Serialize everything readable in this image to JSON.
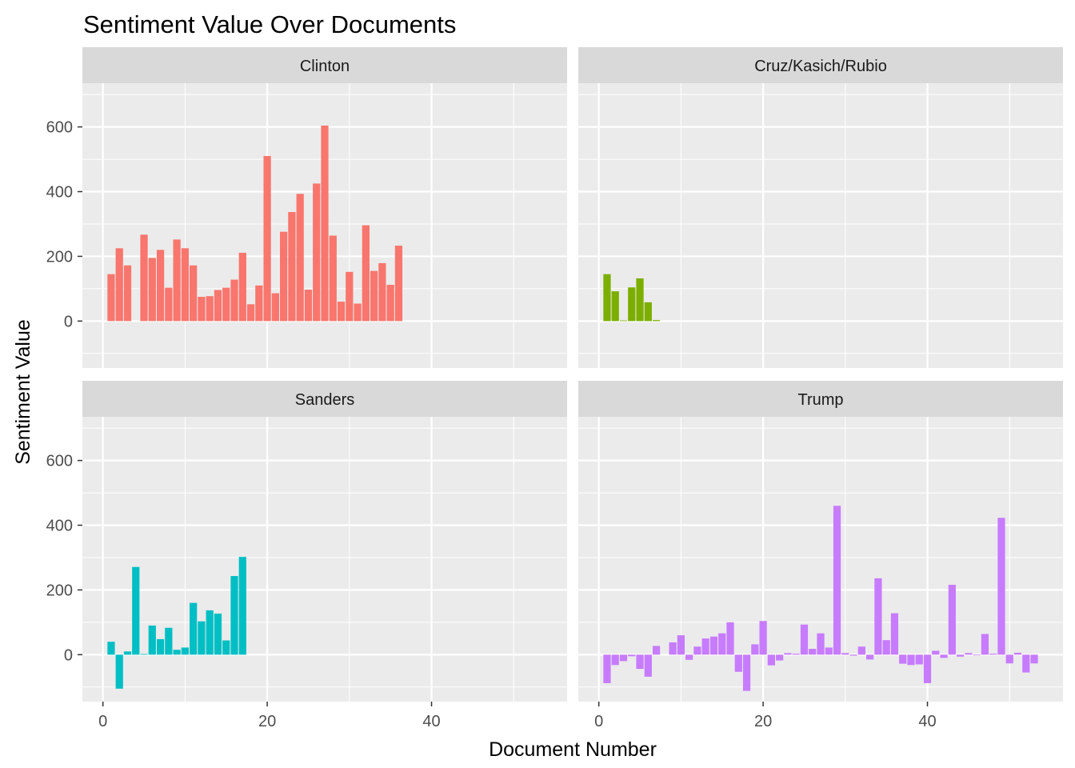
{
  "chart_data": {
    "type": "bar",
    "title": "Sentiment Value Over Documents",
    "xlabel": "Document Number",
    "ylabel": "Sentiment Value",
    "xlim": [
      -2.5,
      56.5
    ],
    "ylim": [
      -145,
      735
    ],
    "x_ticks": [
      0,
      20,
      40
    ],
    "y_ticks": [
      0,
      200,
      400,
      600
    ],
    "grid": true,
    "legend": "none",
    "facets": [
      {
        "name": "Clinton",
        "color": "#F8766D",
        "x": [
          1,
          2,
          3,
          4,
          5,
          6,
          7,
          8,
          9,
          10,
          11,
          12,
          13,
          14,
          15,
          16,
          17,
          18,
          19,
          20,
          21,
          22,
          23,
          24,
          25,
          26,
          27,
          28,
          29,
          30,
          31,
          32,
          33,
          34,
          35,
          36
        ],
        "values": [
          145,
          225,
          172,
          0,
          267,
          195,
          220,
          103,
          252,
          225,
          172,
          75,
          77,
          96,
          103,
          128,
          211,
          52,
          110,
          510,
          86,
          276,
          337,
          393,
          97,
          425,
          604,
          264,
          60,
          152,
          54,
          296,
          155,
          179,
          112,
          233
        ]
      },
      {
        "name": "Cruz/Kasich/Rubio",
        "color": "#7CAE00",
        "x": [
          1,
          2,
          3,
          4,
          5,
          6,
          7
        ],
        "values": [
          145,
          92,
          2,
          104,
          132,
          58,
          3
        ]
      },
      {
        "name": "Sanders",
        "color": "#00BFC4",
        "x": [
          1,
          2,
          3,
          4,
          5,
          6,
          7,
          8,
          9,
          10,
          11,
          12,
          13,
          14,
          15,
          16,
          17
        ],
        "values": [
          40,
          -105,
          10,
          271,
          2,
          90,
          48,
          83,
          15,
          22,
          160,
          103,
          137,
          127,
          44,
          243,
          302
        ]
      },
      {
        "name": "Trump",
        "color": "#C77CFF",
        "x": [
          1,
          2,
          3,
          4,
          5,
          6,
          7,
          8,
          9,
          10,
          11,
          12,
          13,
          14,
          15,
          16,
          17,
          18,
          19,
          20,
          21,
          22,
          23,
          24,
          25,
          26,
          27,
          28,
          29,
          30,
          31,
          32,
          33,
          34,
          35,
          36,
          37,
          38,
          39,
          40,
          41,
          42,
          43,
          44,
          45,
          46,
          47,
          48,
          49,
          50,
          51,
          52,
          53,
          54
        ],
        "values": [
          -88,
          -32,
          -20,
          -5,
          -44,
          -68,
          27,
          0,
          38,
          60,
          -16,
          25,
          50,
          56,
          66,
          100,
          -53,
          -112,
          32,
          104,
          -33,
          -18,
          5,
          3,
          93,
          18,
          66,
          22,
          460,
          5,
          -3,
          25,
          -15,
          236,
          45,
          128,
          -28,
          -32,
          -30,
          -88,
          12,
          -10,
          216,
          -6,
          5,
          -2,
          64,
          3,
          423,
          -27,
          6,
          -55,
          -27,
          0
        ]
      }
    ]
  }
}
